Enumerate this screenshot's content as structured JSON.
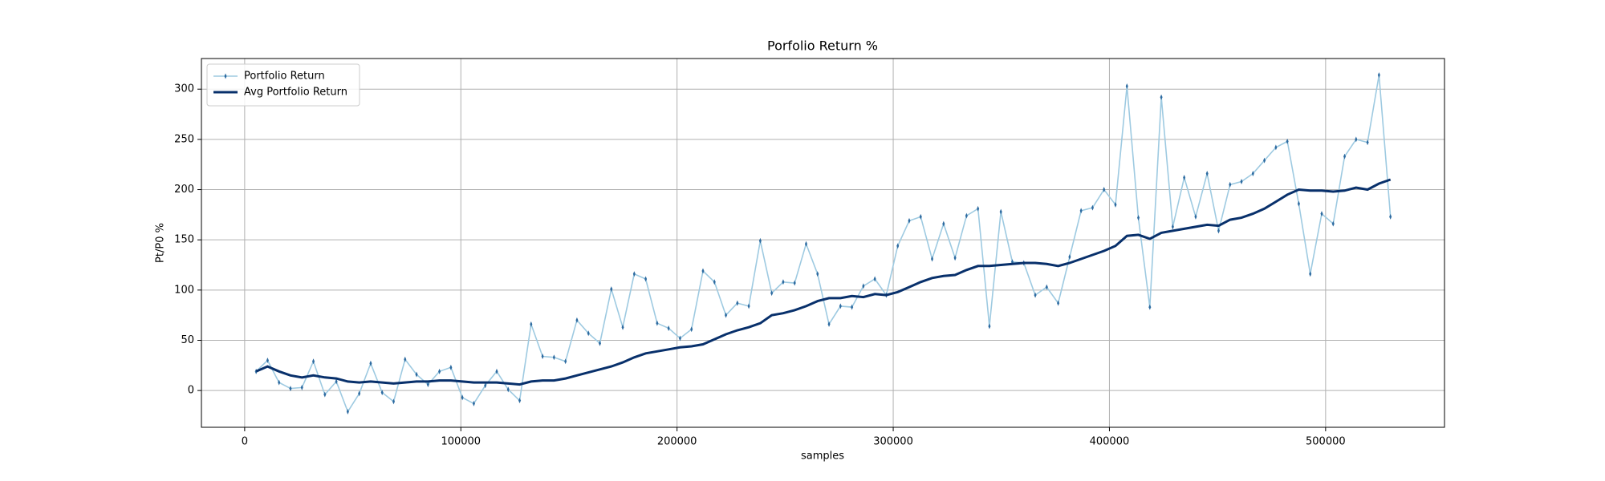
{
  "chart_data": {
    "type": "line",
    "title": "Porfolio Return %",
    "x_label": "samples",
    "y_label": "Pt/P0 %",
    "x": [
      5300,
      10600,
      15900,
      21200,
      26500,
      31800,
      37100,
      42400,
      47700,
      53000,
      58300,
      63600,
      68900,
      74200,
      79500,
      84800,
      90100,
      95400,
      100700,
      106000,
      111300,
      116600,
      121900,
      127200,
      132500,
      137800,
      143100,
      148400,
      153700,
      159000,
      164300,
      169600,
      174900,
      180200,
      185500,
      190800,
      196100,
      201400,
      206700,
      212000,
      217300,
      222600,
      227900,
      233200,
      238500,
      243800,
      249100,
      254400,
      259700,
      265000,
      270300,
      275600,
      280900,
      286200,
      291500,
      296800,
      302100,
      307400,
      312700,
      318000,
      323300,
      328600,
      333900,
      339200,
      344500,
      349800,
      355100,
      360400,
      365700,
      371000,
      376300,
      381600,
      386900,
      392200,
      397500,
      402800,
      408100,
      413400,
      418700,
      424000,
      429300,
      434600,
      439900,
      445200,
      450500,
      455800,
      461100,
      466400,
      471700,
      477000,
      482300,
      487600,
      492900,
      498200,
      503500,
      508800,
      514100,
      519400,
      524700,
      530000
    ],
    "series": [
      {
        "name": "Portfolio Return",
        "color": "#9ecae1",
        "marker_color": "#2c6aa0",
        "values": [
          19,
          30,
          8,
          2,
          3,
          29,
          -4,
          9,
          -21,
          -3,
          27,
          -2,
          -11,
          31,
          16,
          6,
          19,
          23,
          -7,
          -13,
          5,
          19,
          1,
          -10,
          66,
          34,
          33,
          29,
          70,
          57,
          47,
          101,
          63,
          116,
          111,
          67,
          62,
          52,
          61,
          119,
          108,
          75,
          87,
          84,
          149,
          97,
          108,
          107,
          146,
          116,
          66,
          84,
          83,
          104,
          111,
          95,
          144,
          169,
          173,
          131,
          166,
          132,
          174,
          181,
          64,
          178,
          128,
          127,
          95,
          103,
          87,
          133,
          179,
          182,
          200,
          185,
          303,
          172,
          83,
          292,
          163,
          212,
          173,
          216,
          159,
          205,
          208,
          216,
          229,
          242,
          248,
          186,
          116,
          176,
          166,
          233,
          250,
          247,
          314,
          173
        ]
      },
      {
        "name": "Avg Portfolio Return",
        "color": "#08306b",
        "values": [
          19,
          24,
          19,
          15,
          13,
          15,
          13,
          12,
          9,
          8,
          9,
          8,
          7,
          8,
          9,
          9,
          10,
          10,
          9,
          8,
          8,
          8,
          7,
          6,
          9,
          10,
          10,
          12,
          15,
          18,
          21,
          24,
          28,
          33,
          37,
          39,
          41,
          43,
          44,
          46,
          51,
          56,
          60,
          63,
          67,
          75,
          77,
          80,
          84,
          89,
          92,
          92,
          94,
          93,
          96,
          95,
          98,
          103,
          108,
          112,
          114,
          115,
          120,
          124,
          124,
          125,
          126,
          127,
          127,
          126,
          124,
          127,
          131,
          135,
          139,
          144,
          154,
          155,
          151,
          157,
          159,
          161,
          163,
          165,
          164,
          170,
          172,
          176,
          181,
          188,
          195,
          200,
          199,
          199,
          198,
          199,
          202,
          200,
          206,
          210
        ]
      }
    ],
    "xlim": [
      -20000,
      555000
    ],
    "ylim": [
      -36.6,
      330.5
    ],
    "xticks": [
      0,
      100000,
      200000,
      300000,
      400000,
      500000
    ],
    "yticks": [
      0,
      50,
      100,
      150,
      200,
      250,
      300
    ],
    "grid": true,
    "legend": "upper left"
  }
}
